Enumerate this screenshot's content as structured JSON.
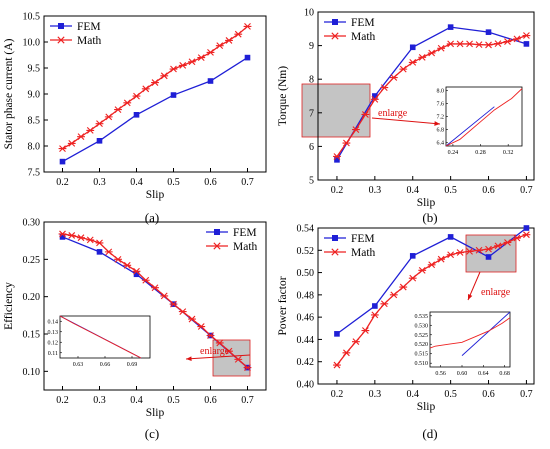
{
  "colors": {
    "fem": "#1f1fd6",
    "math": "#ee2222",
    "enlarge_box": "#c4c4c4",
    "enlarge_text": "#dd1111",
    "axis": "#000000"
  },
  "chart_data": [
    {
      "type": "line",
      "panel": "(a)",
      "xlabel": "Slip",
      "ylabel": "Stator phase current (A)",
      "xlim": [
        0.15,
        0.75
      ],
      "ylim": [
        7.5,
        10.5
      ],
      "xticks": [
        "0.2",
        "0.3",
        "0.4",
        "0.5",
        "0.6",
        "0.7"
      ],
      "yticks": [
        "7.5",
        "8.0",
        "8.5",
        "9.0",
        "9.5",
        "10.0",
        "10.5"
      ],
      "legend_position": "top-left",
      "series": [
        {
          "name": "FEM",
          "marker": "square",
          "x": [
            0.2,
            0.3,
            0.4,
            0.5,
            0.6,
            0.7
          ],
          "y": [
            7.7,
            8.1,
            8.6,
            8.98,
            9.25,
            9.7
          ]
        },
        {
          "name": "Math",
          "marker": "star",
          "x": [
            0.2,
            0.225,
            0.25,
            0.275,
            0.3,
            0.325,
            0.35,
            0.375,
            0.4,
            0.425,
            0.45,
            0.475,
            0.5,
            0.525,
            0.55,
            0.575,
            0.6,
            0.625,
            0.65,
            0.675,
            0.7
          ],
          "y": [
            7.95,
            8.05,
            8.18,
            8.3,
            8.43,
            8.56,
            8.7,
            8.83,
            8.96,
            9.1,
            9.22,
            9.35,
            9.48,
            9.55,
            9.62,
            9.7,
            9.8,
            9.93,
            10.03,
            10.15,
            10.3
          ]
        }
      ]
    },
    {
      "type": "line",
      "panel": "(b)",
      "xlabel": "Slip",
      "ylabel": "Torque (Nm)",
      "xlim": [
        0.15,
        0.72
      ],
      "ylim": [
        5,
        10
      ],
      "xticks": [
        "0.2",
        "0.3",
        "0.4",
        "0.5",
        "0.6",
        "0.7"
      ],
      "yticks": [
        "5",
        "6",
        "7",
        "8",
        "9",
        "10"
      ],
      "legend_position": "top-left",
      "enlarge_label": "enlarge",
      "inset": {
        "xticks": [
          "0.24",
          "0.28",
          "0.32"
        ],
        "yticks": [
          "6.4",
          "6.8",
          "7.2",
          "7.6",
          "8.0"
        ],
        "xlim": [
          0.23,
          0.34
        ],
        "ylim": [
          6.3,
          8.1
        ]
      },
      "series": [
        {
          "name": "FEM",
          "marker": "square",
          "x": [
            0.2,
            0.3,
            0.4,
            0.5,
            0.6,
            0.7
          ],
          "y": [
            5.6,
            7.5,
            8.95,
            9.55,
            9.4,
            9.05
          ]
        },
        {
          "name": "Math",
          "marker": "star",
          "x": [
            0.2,
            0.225,
            0.25,
            0.275,
            0.3,
            0.325,
            0.35,
            0.375,
            0.4,
            0.425,
            0.45,
            0.475,
            0.5,
            0.525,
            0.55,
            0.575,
            0.6,
            0.625,
            0.65,
            0.675,
            0.7
          ],
          "y": [
            5.7,
            6.1,
            6.5,
            6.95,
            7.4,
            7.75,
            8.05,
            8.3,
            8.5,
            8.65,
            8.78,
            8.92,
            9.05,
            9.05,
            9.05,
            9.03,
            9.02,
            9.06,
            9.12,
            9.2,
            9.3
          ]
        }
      ]
    },
    {
      "type": "line",
      "panel": "(c)",
      "xlabel": "Slip",
      "ylabel": "Efficiency",
      "xlim": [
        0.15,
        0.75
      ],
      "ylim": [
        0.075,
        0.3
      ],
      "xticks": [
        "0.2",
        "0.3",
        "0.4",
        "0.5",
        "0.6",
        "0.7"
      ],
      "yticks": [
        "0.10",
        "0.15",
        "0.20",
        "0.25",
        "0.30"
      ],
      "legend_position": "top-right",
      "enlarge_label": "enlarge",
      "inset": {
        "xticks": [
          "0.63",
          "0.66",
          "0.69"
        ],
        "yticks": [
          "0.14",
          "0.13",
          "0.12",
          "0.11"
        ],
        "xlim": [
          0.61,
          0.71
        ],
        "ylim": [
          0.105,
          0.145
        ]
      },
      "series": [
        {
          "name": "FEM",
          "marker": "square",
          "x": [
            0.2,
            0.3,
            0.4,
            0.5,
            0.6,
            0.7
          ],
          "y": [
            0.28,
            0.26,
            0.23,
            0.19,
            0.148,
            0.105
          ]
        },
        {
          "name": "Math",
          "marker": "star",
          "x": [
            0.2,
            0.225,
            0.25,
            0.275,
            0.3,
            0.325,
            0.35,
            0.375,
            0.4,
            0.425,
            0.45,
            0.475,
            0.5,
            0.525,
            0.55,
            0.575,
            0.6,
            0.625,
            0.65,
            0.675,
            0.7
          ],
          "y": [
            0.284,
            0.282,
            0.279,
            0.276,
            0.272,
            0.26,
            0.25,
            0.242,
            0.234,
            0.222,
            0.212,
            0.201,
            0.19,
            0.18,
            0.17,
            0.16,
            0.148,
            0.138,
            0.127,
            0.116,
            0.105
          ]
        }
      ]
    },
    {
      "type": "line",
      "panel": "(d)",
      "xlabel": "Slip",
      "ylabel": "Power factor",
      "xlim": [
        0.15,
        0.72
      ],
      "ylim": [
        0.4,
        0.54
      ],
      "xticks": [
        "0.2",
        "0.3",
        "0.4",
        "0.5",
        "0.6",
        "0.7"
      ],
      "yticks": [
        "0.40",
        "0.42",
        "0.44",
        "0.46",
        "0.48",
        "0.50",
        "0.52",
        "0.54"
      ],
      "legend_position": "top-left",
      "enlarge_label": "enlarge",
      "inset": {
        "xticks": [
          "0.56",
          "0.60",
          "0.64",
          "0.68"
        ],
        "yticks": [
          "0.535",
          "0.530",
          "0.525",
          "0.520",
          "0.515",
          "0.510"
        ],
        "xlim": [
          0.54,
          0.69
        ],
        "ylim": [
          0.508,
          0.537
        ]
      },
      "series": [
        {
          "name": "FEM",
          "marker": "square",
          "x": [
            0.2,
            0.3,
            0.4,
            0.5,
            0.6,
            0.7
          ],
          "y": [
            0.445,
            0.47,
            0.515,
            0.532,
            0.514,
            0.54
          ]
        },
        {
          "name": "Math",
          "marker": "star",
          "x": [
            0.2,
            0.225,
            0.25,
            0.275,
            0.3,
            0.325,
            0.35,
            0.375,
            0.4,
            0.425,
            0.45,
            0.475,
            0.5,
            0.525,
            0.55,
            0.575,
            0.6,
            0.625,
            0.65,
            0.675,
            0.7
          ],
          "y": [
            0.417,
            0.428,
            0.438,
            0.448,
            0.462,
            0.472,
            0.48,
            0.487,
            0.495,
            0.502,
            0.507,
            0.512,
            0.516,
            0.518,
            0.519,
            0.52,
            0.521,
            0.524,
            0.527,
            0.531,
            0.534
          ]
        }
      ]
    }
  ]
}
